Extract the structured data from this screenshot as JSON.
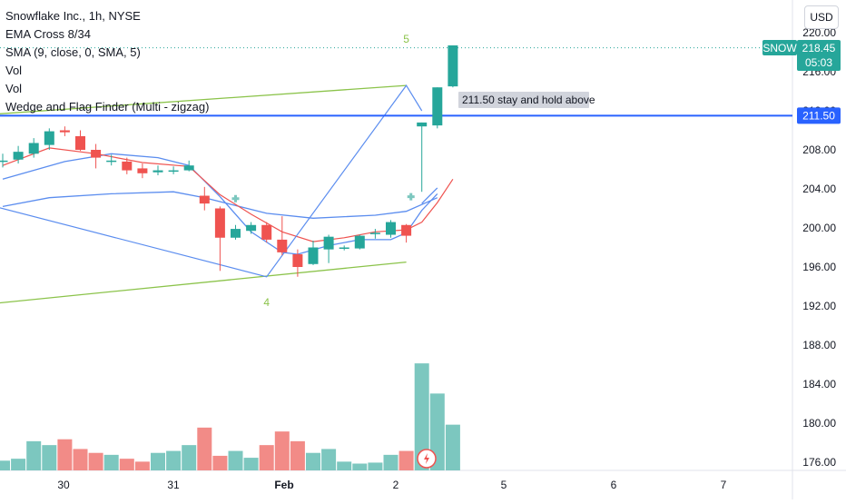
{
  "legend": {
    "symbol_line": "Snowflake Inc., 1h, NYSE",
    "indicators": [
      "EMA Cross 8/34",
      "SMA (9, close, 0, SMA, 5)",
      "Vol",
      "Vol",
      "Wedge and Flag Finder (Multi - zigzag)"
    ]
  },
  "currency_button": "USD",
  "annotation": "211.50 stay and hold above",
  "colors": {
    "up": "#26a69a",
    "down": "#ef5350",
    "up_vol": "#7cc7bf",
    "down_vol": "#f28b87",
    "hline": "#2962ff",
    "wedge": "#8bc34a",
    "zigzag": "#5b8def",
    "ema_fast": "#ef5350",
    "ema_slow": "#5b8def"
  },
  "chart_data": {
    "type": "candlestick",
    "symbol": "SNOW",
    "last_price": "218.45",
    "countdown": "05:03",
    "hline_label": "211.50",
    "hline_value": 211.5,
    "y_ticks": [
      "220.00",
      "216.00",
      "212.00",
      "208.00",
      "204.00",
      "200.00",
      "196.00",
      "192.00",
      "188.00",
      "184.00",
      "180.00",
      "176.00"
    ],
    "ylim": [
      175.5,
      220.5
    ],
    "x_ticks": [
      {
        "label": "30",
        "index": 3.7,
        "bold": false
      },
      {
        "label": "31",
        "index": 10.8,
        "bold": false
      },
      {
        "label": "Feb",
        "index": 18.0,
        "bold": true
      },
      {
        "label": "2",
        "index": 25.0,
        "bold": false
      },
      {
        "label": "5",
        "index": 32.0,
        "bold": false
      },
      {
        "label": "6",
        "index": 39.0,
        "bold": false
      },
      {
        "label": "7",
        "index": 46.0,
        "bold": false
      }
    ],
    "candles": [
      {
        "o": 206.9,
        "h": 207.6,
        "l": 206.2,
        "c": 206.9
      },
      {
        "o": 207.0,
        "h": 208.4,
        "l": 206.6,
        "c": 207.8
      },
      {
        "o": 207.6,
        "h": 209.2,
        "l": 207.2,
        "c": 208.7
      },
      {
        "o": 208.5,
        "h": 210.2,
        "l": 208.0,
        "c": 209.9
      },
      {
        "o": 210.0,
        "h": 210.4,
        "l": 209.4,
        "c": 209.8
      },
      {
        "o": 209.4,
        "h": 210.0,
        "l": 207.9,
        "c": 208.0
      },
      {
        "o": 208.0,
        "h": 208.6,
        "l": 206.1,
        "c": 207.2
      },
      {
        "o": 206.9,
        "h": 207.5,
        "l": 206.4,
        "c": 206.9
      },
      {
        "o": 206.8,
        "h": 207.2,
        "l": 205.5,
        "c": 205.9
      },
      {
        "o": 206.1,
        "h": 206.6,
        "l": 205.1,
        "c": 205.6
      },
      {
        "o": 205.7,
        "h": 206.4,
        "l": 205.4,
        "c": 205.9
      },
      {
        "o": 205.9,
        "h": 206.3,
        "l": 205.5,
        "c": 205.9
      },
      {
        "o": 205.9,
        "h": 206.9,
        "l": 205.8,
        "c": 206.4
      },
      {
        "o": 203.3,
        "h": 204.2,
        "l": 201.8,
        "c": 202.5
      },
      {
        "o": 202.0,
        "h": 202.2,
        "l": 195.6,
        "c": 199.0
      },
      {
        "o": 199.0,
        "h": 200.3,
        "l": 198.8,
        "c": 199.9
      },
      {
        "o": 199.7,
        "h": 200.6,
        "l": 199.4,
        "c": 200.3
      },
      {
        "o": 200.3,
        "h": 200.6,
        "l": 198.5,
        "c": 198.8
      },
      {
        "o": 198.8,
        "h": 201.2,
        "l": 197.2,
        "c": 197.5
      },
      {
        "o": 197.3,
        "h": 197.8,
        "l": 195.0,
        "c": 196.0
      },
      {
        "o": 196.3,
        "h": 198.7,
        "l": 196.2,
        "c": 198.0
      },
      {
        "o": 197.8,
        "h": 199.3,
        "l": 196.4,
        "c": 199.1
      },
      {
        "o": 197.9,
        "h": 198.2,
        "l": 197.7,
        "c": 198.0
      },
      {
        "o": 197.9,
        "h": 199.3,
        "l": 197.8,
        "c": 199.2
      },
      {
        "o": 199.5,
        "h": 199.9,
        "l": 198.9,
        "c": 199.5
      },
      {
        "o": 199.3,
        "h": 200.8,
        "l": 199.0,
        "c": 200.6
      },
      {
        "o": 200.3,
        "h": 200.4,
        "l": 198.5,
        "c": 199.2
      },
      {
        "o": 210.4,
        "h": 210.8,
        "l": 203.7,
        "c": 210.8
      },
      {
        "o": 210.5,
        "h": 214.4,
        "l": 210.2,
        "c": 214.4
      },
      {
        "o": 214.5,
        "h": 218.7,
        "l": 214.4,
        "c": 218.7
      }
    ],
    "volume": [
      1.0,
      1.2,
      3.0,
      2.6,
      3.2,
      2.2,
      1.8,
      1.6,
      1.2,
      0.9,
      1.8,
      2.0,
      2.6,
      4.4,
      1.5,
      2.0,
      1.3,
      2.6,
      4.0,
      3.0,
      1.8,
      2.2,
      0.9,
      0.7,
      0.8,
      1.6,
      2.0,
      11.0,
      7.9,
      4.7
    ],
    "volume_scale_max": 14,
    "ema_fast": [
      [
        0,
        206.4
      ],
      [
        3,
        208.2
      ],
      [
        6,
        207.6
      ],
      [
        9,
        206.7
      ],
      [
        12,
        206.3
      ],
      [
        14,
        203.4
      ],
      [
        16,
        201.4
      ],
      [
        18,
        199.6
      ],
      [
        20,
        198.6
      ],
      [
        22,
        199.0
      ],
      [
        24,
        199.6
      ],
      [
        26,
        199.8
      ],
      [
        27,
        200.6
      ],
      [
        28,
        202.6
      ],
      [
        29,
        205.0
      ]
    ],
    "ema_slow": [
      [
        0,
        205.0
      ],
      [
        4,
        206.8
      ],
      [
        7,
        207.6
      ],
      [
        10,
        207.2
      ],
      [
        12,
        206.4
      ],
      [
        14,
        203.2
      ],
      [
        16,
        199.6
      ],
      [
        18,
        197.5
      ],
      [
        19,
        197.3
      ],
      [
        21,
        198.2
      ],
      [
        23,
        198.8
      ],
      [
        25,
        198.8
      ],
      [
        26,
        199.5
      ],
      [
        27,
        201.8
      ],
      [
        28,
        203.5
      ]
    ],
    "sma_slow": [
      [
        0,
        202.2
      ],
      [
        3,
        203.1
      ],
      [
        7,
        203.5
      ],
      [
        11,
        203.7
      ],
      [
        13,
        203.1
      ],
      [
        17,
        201.5
      ],
      [
        20,
        201.0
      ],
      [
        24,
        201.3
      ],
      [
        26,
        201.7
      ],
      [
        28,
        203.1
      ]
    ],
    "ema_slow_tail": [
      [
        27,
        202.5
      ],
      [
        28,
        204.1
      ]
    ],
    "zigzag": [
      [
        -1,
        202.4
      ],
      [
        17,
        195.0
      ],
      [
        26,
        214.6
      ],
      [
        27,
        212.0
      ]
    ],
    "wedge_upper": [
      [
        -1,
        211.6
      ],
      [
        26,
        214.6
      ]
    ],
    "wedge_lower": [
      [
        -1,
        192.2
      ],
      [
        26,
        196.5
      ]
    ],
    "labels": [
      {
        "text": "5",
        "index": 26.0,
        "y": 219.0
      },
      {
        "text": "4",
        "index": 17.0,
        "y": 192.0
      }
    ]
  }
}
